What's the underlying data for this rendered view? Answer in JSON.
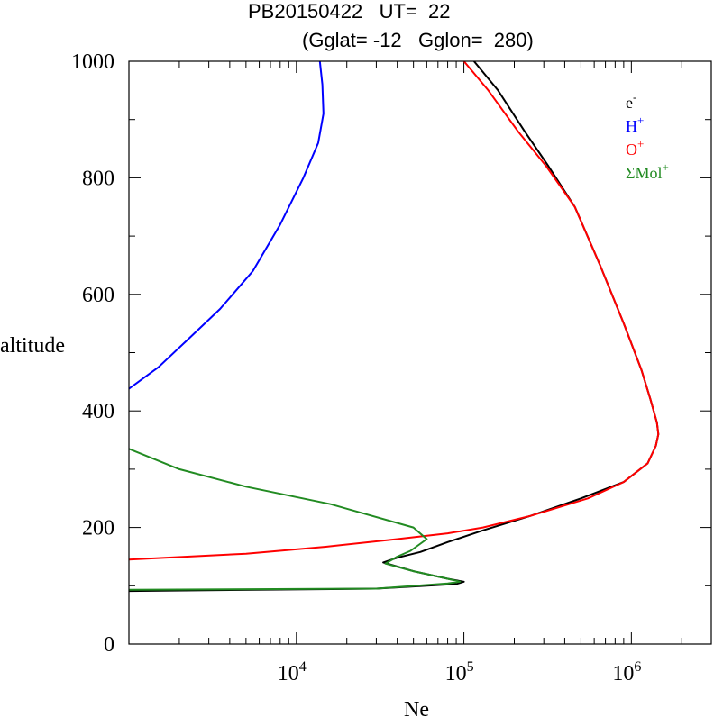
{
  "title_line1": "PB20150422   UT=  22",
  "title_line2": "(Gglat= -12   Gglon=  280)",
  "chart_data": {
    "type": "line",
    "xlabel": "Ne",
    "ylabel": "altitude",
    "xscale": "log",
    "xlim": [
      1000,
      3000000
    ],
    "ylim": [
      0,
      1000
    ],
    "x_tick_labels": [
      {
        "base": "10",
        "exp": "4",
        "value": 10000
      },
      {
        "base": "10",
        "exp": "5",
        "value": 100000
      },
      {
        "base": "10",
        "exp": "6",
        "value": 1000000
      }
    ],
    "y_ticks": [
      0,
      200,
      400,
      600,
      800,
      1000
    ],
    "y_tick_labels": [
      "0",
      "200",
      "400",
      "600",
      "800",
      "1000"
    ],
    "legend_position": "top-right",
    "series": [
      {
        "name": "e-",
        "label_base": "e",
        "label_sup": "-",
        "color": "#000000",
        "points": [
          [
            1000,
            91
          ],
          [
            30000,
            95
          ],
          [
            90000,
            103
          ],
          [
            100000,
            107
          ],
          [
            80000,
            112
          ],
          [
            50000,
            125
          ],
          [
            33000,
            140
          ],
          [
            40000,
            148
          ],
          [
            55000,
            158
          ],
          [
            80000,
            175
          ],
          [
            130000,
            195
          ],
          [
            250000,
            220
          ],
          [
            500000,
            250
          ],
          [
            900000,
            278
          ],
          [
            1250000,
            310
          ],
          [
            1400000,
            340
          ],
          [
            1450000,
            360
          ],
          [
            1420000,
            380
          ],
          [
            1300000,
            420
          ],
          [
            1150000,
            470
          ],
          [
            900000,
            550
          ],
          [
            650000,
            650
          ],
          [
            460000,
            750
          ],
          [
            320000,
            820
          ],
          [
            230000,
            880
          ],
          [
            160000,
            950
          ],
          [
            115000,
            1000
          ]
        ]
      },
      {
        "name": "H+",
        "label_base": "H",
        "label_sup": "+",
        "color": "#0000ff",
        "points": [
          [
            1000,
            438
          ],
          [
            1500,
            475
          ],
          [
            2200,
            520
          ],
          [
            3500,
            575
          ],
          [
            5500,
            640
          ],
          [
            8000,
            720
          ],
          [
            11000,
            800
          ],
          [
            13500,
            860
          ],
          [
            14500,
            910
          ],
          [
            14300,
            960
          ],
          [
            13800,
            1000
          ]
        ]
      },
      {
        "name": "O+",
        "label_base": "O",
        "label_sup": "+",
        "color": "#ff0000",
        "points": [
          [
            1000,
            145
          ],
          [
            5000,
            155
          ],
          [
            15000,
            167
          ],
          [
            40000,
            180
          ],
          [
            80000,
            190
          ],
          [
            130000,
            200
          ],
          [
            250000,
            220
          ],
          [
            550000,
            250
          ],
          [
            900000,
            278
          ],
          [
            1250000,
            310
          ],
          [
            1400000,
            340
          ],
          [
            1450000,
            360
          ],
          [
            1420000,
            380
          ],
          [
            1300000,
            420
          ],
          [
            1150000,
            470
          ],
          [
            900000,
            550
          ],
          [
            650000,
            650
          ],
          [
            460000,
            750
          ],
          [
            310000,
            820
          ],
          [
            210000,
            880
          ],
          [
            140000,
            950
          ],
          [
            100000,
            1000
          ]
        ]
      },
      {
        "name": "ΣMol+",
        "label_base": "ΣMol",
        "label_sup": "+",
        "color": "#228b22",
        "points": [
          [
            1000,
            93
          ],
          [
            30000,
            95
          ],
          [
            80000,
            104
          ],
          [
            95000,
            107
          ],
          [
            80000,
            112
          ],
          [
            50000,
            125
          ],
          [
            34000,
            138
          ],
          [
            40000,
            150
          ],
          [
            48000,
            160
          ],
          [
            60000,
            180
          ],
          [
            50000,
            200
          ],
          [
            16000,
            240
          ],
          [
            5000,
            270
          ],
          [
            2000,
            300
          ],
          [
            1000,
            335
          ]
        ]
      }
    ]
  }
}
